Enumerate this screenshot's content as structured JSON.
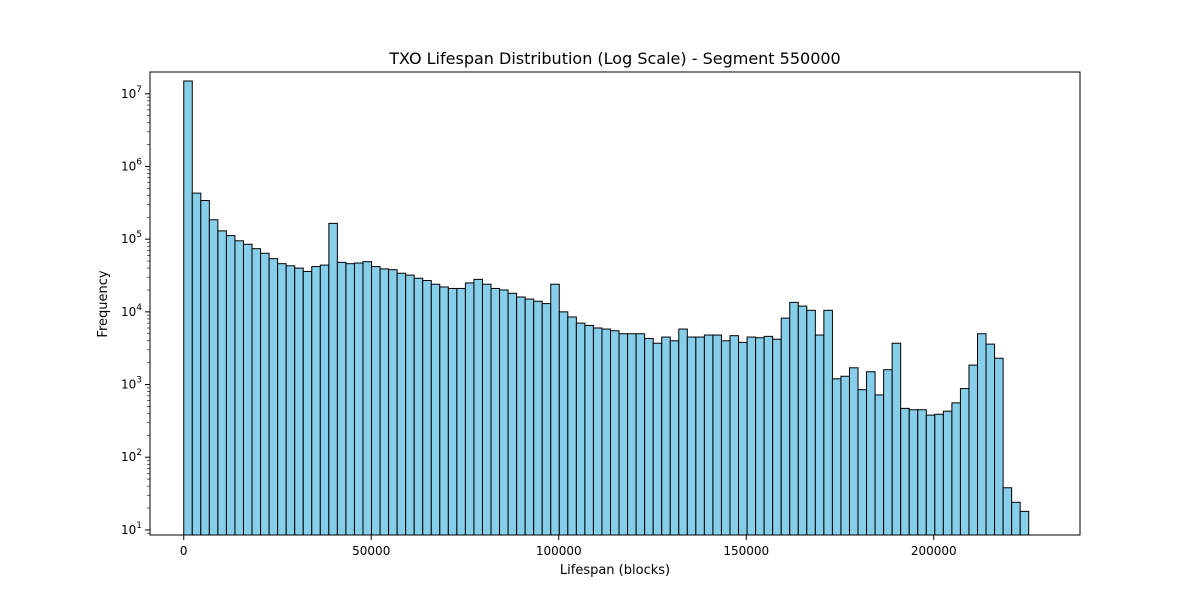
{
  "chart_data": {
    "type": "bar",
    "title": "TXO Lifespan Distribution (Log Scale) - Segment 550000",
    "xlabel": "Lifespan (blocks)",
    "ylabel": "Frequency",
    "y_scale": "log",
    "xlim": [
      -9000,
      239000
    ],
    "ylim_log10": [
      0.93,
      7.3
    ],
    "x_ticks": [
      0,
      50000,
      100000,
      150000,
      200000
    ],
    "x_tick_labels": [
      "0",
      "50000",
      "100000",
      "150000",
      "200000"
    ],
    "y_ticks": [
      10,
      100,
      1000,
      10000,
      100000,
      1000000,
      10000000
    ],
    "y_tick_labels": [
      {
        "base": "10",
        "exp": "1"
      },
      {
        "base": "10",
        "exp": "2"
      },
      {
        "base": "10",
        "exp": "3"
      },
      {
        "base": "10",
        "exp": "4"
      },
      {
        "base": "10",
        "exp": "5"
      },
      {
        "base": "10",
        "exp": "6"
      },
      {
        "base": "10",
        "exp": "7"
      }
    ],
    "bin_start": 0,
    "bin_width": 2276,
    "bar_color": "#87ceeb",
    "edge_color": "#000000",
    "grid": false,
    "values": [
      15000000,
      430000,
      340000,
      185000,
      130000,
      112000,
      95000,
      85000,
      74000,
      64000,
      54000,
      46000,
      43000,
      40000,
      36000,
      42000,
      44000,
      165000,
      48000,
      46000,
      47000,
      49000,
      42000,
      39000,
      38000,
      34000,
      32000,
      29000,
      27000,
      24000,
      22000,
      21000,
      21000,
      25000,
      28000,
      24000,
      21000,
      20000,
      18000,
      16000,
      15000,
      14000,
      13000,
      24000,
      10000,
      8500,
      7000,
      6500,
      6000,
      5800,
      5500,
      5000,
      5000,
      5000,
      4300,
      3700,
      4500,
      4000,
      5800,
      4500,
      4500,
      4800,
      4800,
      4000,
      4700,
      3800,
      4500,
      4400,
      4600,
      4200,
      8200,
      13500,
      12000,
      10500,
      4800,
      10500,
      1200,
      1300,
      1700,
      850,
      1500,
      720,
      1600,
      3700,
      470,
      450,
      450,
      380,
      390,
      430,
      560,
      880,
      1850,
      5000,
      3600,
      2300,
      38,
      24,
      18
    ]
  }
}
